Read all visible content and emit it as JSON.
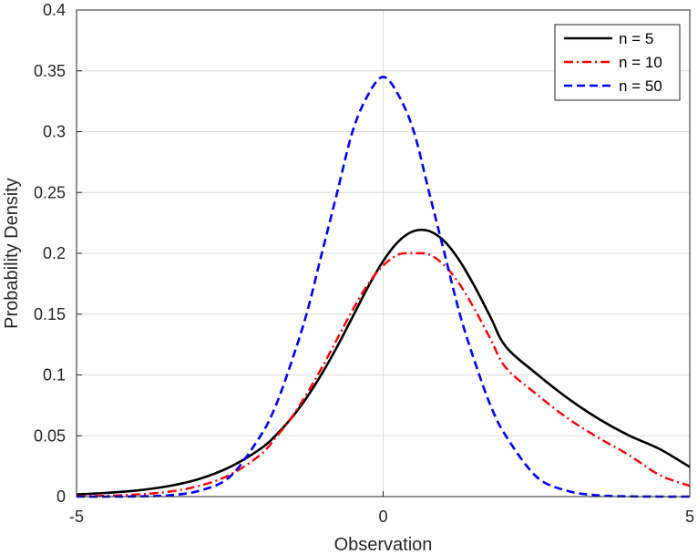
{
  "chart_data": {
    "type": "line",
    "title": "",
    "xlabel": "Observation",
    "ylabel": "Probability Density",
    "xlim": [
      -5,
      5
    ],
    "ylim": [
      0,
      0.4
    ],
    "xticks": [
      -5,
      0,
      5
    ],
    "yticks": [
      0,
      0.05,
      0.1,
      0.15,
      0.2,
      0.25,
      0.3,
      0.35,
      0.4
    ],
    "xtick_labels": [
      "-5",
      "0",
      "5"
    ],
    "ytick_labels": [
      "0",
      "0.05",
      "0.1",
      "0.15",
      "0.2",
      "0.25",
      "0.3",
      "0.35",
      "0.4"
    ],
    "grid": true,
    "legend_position": "top-right",
    "x": [
      -5,
      -4.5,
      -4,
      -3.5,
      -3,
      -2.5,
      -2,
      -1.75,
      -1.5,
      -1.25,
      -1,
      -0.75,
      -0.5,
      -0.25,
      0,
      0.25,
      0.5,
      0.75,
      1,
      1.25,
      1.5,
      1.75,
      2,
      2.5,
      3,
      3.5,
      4,
      4.5,
      5
    ],
    "series": [
      {
        "name": "n = 5",
        "color": "#000000",
        "style": "solid",
        "values": [
          0.0018,
          0.0031,
          0.0051,
          0.0086,
          0.0145,
          0.0243,
          0.0393,
          0.0504,
          0.0643,
          0.0812,
          0.101,
          0.1233,
          0.1476,
          0.172,
          0.1936,
          0.2098,
          0.2183,
          0.2183,
          0.2098,
          0.1936,
          0.172,
          0.1476,
          0.1233,
          0.101,
          0.0812,
          0.0643,
          0.0504,
          0.0393,
          0.0243
        ]
      },
      {
        "name": "n = 10",
        "color": "#ff0000",
        "style": "dashdot",
        "values": [
          0.0003,
          0.0007,
          0.0018,
          0.004,
          0.0088,
          0.0179,
          0.0344,
          0.0487,
          0.0647,
          0.0842,
          0.106,
          0.1296,
          0.1533,
          0.1744,
          0.19,
          0.199,
          0.2,
          0.199,
          0.19,
          0.1744,
          0.1533,
          0.1296,
          0.106,
          0.0842,
          0.0647,
          0.0487,
          0.0344,
          0.0179,
          0.0088
        ]
      },
      {
        "name": "n = 50",
        "color": "#0000ff",
        "style": "dashed",
        "values": [
          0.0,
          0.0,
          0.0002,
          0.001,
          0.0048,
          0.0163,
          0.05,
          0.075,
          0.11,
          0.15,
          0.2,
          0.25,
          0.3,
          0.33,
          0.345,
          0.33,
          0.3,
          0.25,
          0.2,
          0.15,
          0.11,
          0.075,
          0.05,
          0.0163,
          0.0048,
          0.001,
          0.0002,
          0.0,
          0.0
        ]
      }
    ]
  }
}
